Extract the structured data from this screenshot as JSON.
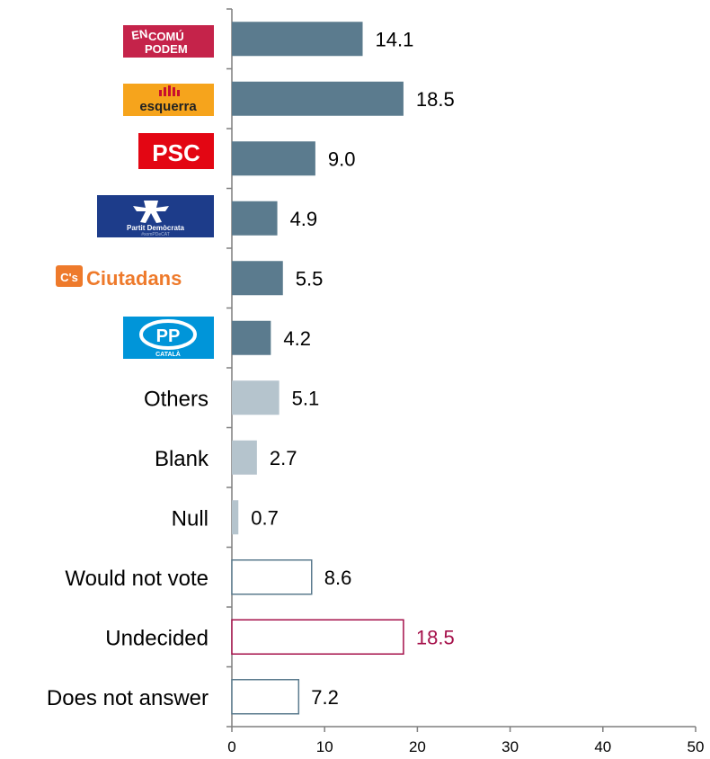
{
  "chart_data": {
    "type": "bar",
    "orientation": "horizontal",
    "categories": [
      "En Comú Podem",
      "Esquerra",
      "PSC",
      "Partit Demòcrata",
      "Ciutadans",
      "PP Català",
      "Others",
      "Blank",
      "Null",
      "Would not vote",
      "Undecided",
      "Does not answer"
    ],
    "values": [
      14.1,
      18.5,
      9.0,
      4.9,
      5.5,
      4.2,
      5.1,
      2.7,
      0.7,
      8.6,
      18.5,
      7.2
    ],
    "value_labels": [
      "14.1",
      "18.5",
      "9.0",
      "4.9",
      "5.5",
      "4.2",
      "5.1",
      "2.7",
      "0.7",
      "8.6",
      "18.5",
      "7.2"
    ],
    "label_kind": [
      "logo",
      "logo",
      "logo",
      "logo",
      "logo",
      "logo",
      "text",
      "text",
      "text",
      "text",
      "text",
      "text"
    ],
    "bar_style": [
      "party",
      "party",
      "party",
      "party",
      "party",
      "party",
      "other",
      "other",
      "other",
      "outline",
      "highlight",
      "outline"
    ],
    "xlim": [
      0,
      50
    ],
    "xticks": [
      0,
      10,
      20,
      30,
      40,
      50
    ],
    "grid": false,
    "legend": "none",
    "title": "",
    "xlabel": "",
    "ylabel": ""
  },
  "logos": {
    "comu": {
      "line1": "EN",
      "line2": "COMÚ",
      "line3": "PODEM"
    },
    "esquerra": {
      "text": "esquerra"
    },
    "psc": {
      "text": "PSC"
    },
    "pdecat": {
      "text": "Partit Demòcrata",
      "sub": "#somPDeCAT"
    },
    "cs": {
      "badge": "C's",
      "text": "Ciutadans"
    },
    "pp": {
      "text": "PP",
      "sub": "CATALÀ"
    }
  },
  "colors": {
    "party": "#5b7b8e",
    "other": "#b5c4cd",
    "outline": "#5b7b8e",
    "highlight": "#a5104a",
    "axis": "#7f7f7f",
    "comu": "#c5234a",
    "esquerra_bg": "#f6a41c",
    "esquerra_mark": "#c8102e",
    "psc": "#e30613",
    "pdecat": "#1d3c8a",
    "cs": "#ee7a2b",
    "pp": "#0095d9"
  }
}
